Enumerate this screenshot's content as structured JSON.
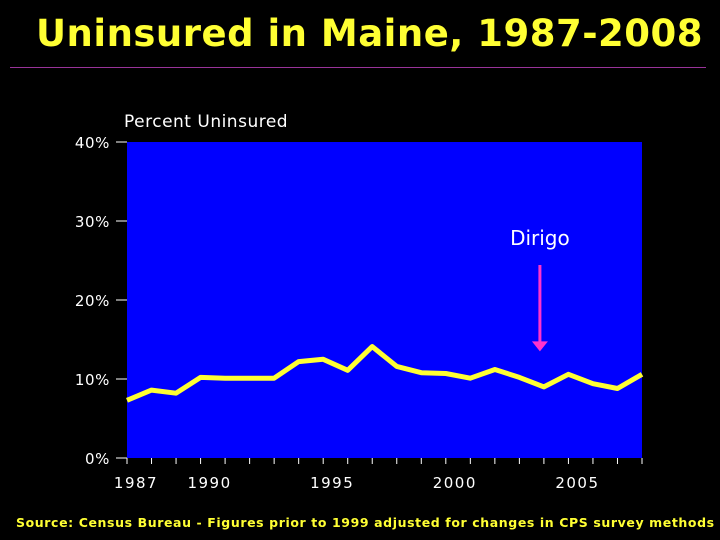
{
  "slide": {
    "title": "Uninsured in Maine, 1987-2008",
    "source": "Source: Census Bureau - Figures prior to 1999 adjusted for changes in CPS survey methods"
  },
  "colors": {
    "background": "#000000",
    "title": "#ffff33",
    "plot_area": "#0000ff",
    "line": "#ffff33",
    "arrow": "#ff33cc",
    "axis_text": "#ffffff",
    "rule": "#993399"
  },
  "chart_data": {
    "type": "line",
    "ylabel": "Percent Uninsured",
    "xlabel": "",
    "xlim": [
      1987,
      2008
    ],
    "ylim": [
      0,
      40
    ],
    "x_ticks": [
      1987,
      1990,
      1995,
      2000,
      2005
    ],
    "x_tick_labels": [
      "1987",
      "1990",
      "1995",
      "2000",
      "2005"
    ],
    "y_ticks": [
      0,
      10,
      20,
      30,
      40
    ],
    "y_tick_labels": [
      "0%",
      "10%",
      "20%",
      "30%",
      "40%"
    ],
    "grid": false,
    "legend": "none",
    "series": [
      {
        "x": [
          1987,
          1988,
          1989,
          1990,
          1991,
          1992,
          1993,
          1994,
          1995,
          1996,
          1997,
          1998,
          1999,
          2000,
          2001,
          2002,
          2003,
          2004,
          2005,
          2006,
          2007,
          2008
        ],
        "values": [
          7.3,
          8.6,
          8.2,
          10.2,
          10.1,
          10.1,
          10.1,
          12.2,
          12.5,
          11.1,
          14.1,
          11.6,
          10.8,
          10.7,
          10.1,
          11.2,
          10.2,
          9.0,
          10.6,
          9.4,
          8.8,
          10.6
        ]
      }
    ],
    "annotations": [
      {
        "text": "Dirigo",
        "x": 2004,
        "y": 13.5
      }
    ]
  }
}
